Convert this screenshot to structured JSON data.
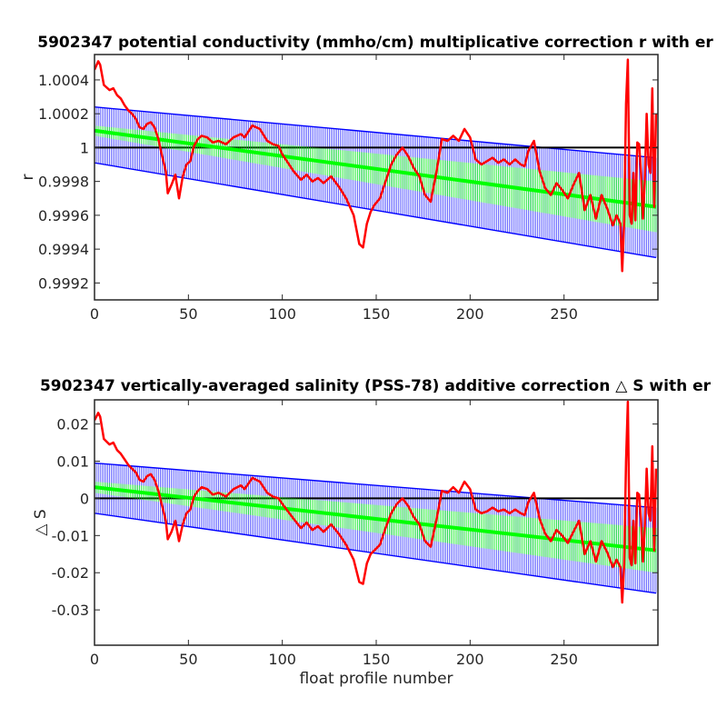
{
  "chart_data": [
    {
      "type": "line",
      "title": "5902347 potential conductivity (mmho/cm) multiplicative correction r with er",
      "xlabel": "",
      "ylabel": "r",
      "xlim": [
        0,
        300
      ],
      "ylim": [
        0.9991,
        1.00055
      ],
      "xticks": [
        0,
        50,
        100,
        150,
        200,
        250
      ],
      "xtick_labels": [
        "0",
        "50",
        "100",
        "150",
        "200",
        "250"
      ],
      "yticks": [
        0.9992,
        0.9994,
        0.9996,
        0.9998,
        1,
        1.0002,
        1.0004
      ],
      "ytick_labels": [
        "0.9992",
        "0.9994",
        "0.9996",
        "0.9998",
        "1",
        "1.0002",
        "1.0004"
      ],
      "grid": false,
      "reference_line": 1,
      "series": [
        {
          "role": "raw-fit",
          "color": "#ff0000",
          "x": [
            0,
            2,
            3,
            5,
            8,
            10,
            12,
            14,
            16,
            18,
            20,
            22,
            24,
            26,
            28,
            30,
            32,
            34,
            36,
            38,
            39,
            41,
            43,
            45,
            47,
            49,
            51,
            53,
            55,
            57,
            60,
            63,
            66,
            70,
            74,
            78,
            80,
            84,
            88,
            92,
            95,
            98,
            100,
            103,
            106,
            110,
            113,
            116,
            119,
            122,
            126,
            130,
            134,
            138,
            141,
            143,
            145,
            147,
            149,
            152,
            155,
            158,
            161,
            164,
            167,
            170,
            173,
            176,
            179,
            182,
            185,
            188,
            191,
            194,
            197,
            200,
            203,
            206,
            209,
            212,
            215,
            218,
            221,
            224,
            227,
            229,
            231,
            234,
            237,
            240,
            243,
            246,
            249,
            252,
            255,
            258,
            261,
            264,
            267,
            270,
            273,
            276,
            278,
            280,
            281,
            282,
            283,
            284,
            285,
            286,
            287,
            288,
            289,
            290,
            291,
            292,
            293,
            294,
            295,
            296,
            297,
            298,
            299
          ],
          "y": [
            1.00046,
            1.00051,
            1.00049,
            1.00037,
            1.00034,
            1.00035,
            1.00031,
            1.00029,
            1.00025,
            1.00022,
            1.0002,
            1.00017,
            1.00012,
            1.00011,
            1.00014,
            1.00015,
            1.00012,
            1.00005,
            0.99995,
            0.99986,
            0.99973,
            0.99978,
            0.99984,
            0.9997,
            0.99983,
            0.9999,
            0.99992,
            1.00001,
            1.00005,
            1.00007,
            1.00006,
            1.00003,
            1.00004,
            1.00002,
            1.00006,
            1.00008,
            1.00006,
            1.00013,
            1.00011,
            1.00004,
            1.00002,
            1.00001,
            0.99996,
            0.99991,
            0.99986,
            0.99981,
            0.99984,
            0.9998,
            0.99982,
            0.99979,
            0.99983,
            0.99977,
            0.9997,
            0.9996,
            0.99943,
            0.99941,
            0.99955,
            0.99962,
            0.99966,
            0.9997,
            0.9998,
            0.9999,
            0.99996,
            1.0,
            0.99995,
            0.99988,
            0.99983,
            0.99972,
            0.99968,
            0.99985,
            1.00005,
            1.00004,
            1.00007,
            1.00004,
            1.00011,
            1.00006,
            0.99993,
            0.9999,
            0.99992,
            0.99994,
            0.99991,
            0.99993,
            0.9999,
            0.99993,
            0.9999,
            0.99989,
            0.99998,
            1.00004,
            0.99986,
            0.99976,
            0.99972,
            0.99979,
            0.99975,
            0.9997,
            0.99978,
            0.99985,
            0.99963,
            0.99972,
            0.99958,
            0.99972,
            0.99964,
            0.99954,
            0.9996,
            0.99955,
            0.99927,
            0.99956,
            1.00026,
            1.00052,
            0.9996,
            0.99955,
            0.99985,
            0.99957,
            1.00003,
            1.00002,
            0.99985,
            0.99958,
            0.9998,
            1.0002,
            0.9999,
            0.99985,
            1.00035,
            0.99965,
            1.0002
          ]
        },
        {
          "role": "fit-with-error",
          "color": "#00ff00",
          "x_range": [
            0,
            300
          ],
          "y_start": 1.0001,
          "y_end": 0.99965,
          "err_start": 3e-05,
          "err_end": 0.00015
        },
        {
          "role": "error-envelope",
          "color": "#0000ff",
          "x_range": [
            0,
            300
          ],
          "upper_start": 1.00024,
          "upper_end": 0.99994,
          "lower_start": 0.99991,
          "lower_end": 0.99935
        }
      ]
    },
    {
      "type": "line",
      "title": "5902347 vertically-averaged salinity (PSS-78) additive correction △ S with er",
      "xlabel": "float profile number",
      "ylabel": "△ S",
      "xlim": [
        0,
        300
      ],
      "ylim": [
        -0.0395,
        0.0265
      ],
      "xticks": [
        0,
        50,
        100,
        150,
        200,
        250
      ],
      "xtick_labels": [
        "0",
        "50",
        "100",
        "150",
        "200",
        "250"
      ],
      "yticks": [
        -0.03,
        -0.02,
        -0.01,
        0,
        0.01,
        0.02
      ],
      "ytick_labels": [
        "-0.03",
        "-0.02",
        "-0.01",
        "0",
        "0.01",
        "0.02"
      ],
      "grid": false,
      "reference_line": 0,
      "series": [
        {
          "role": "raw-fit",
          "color": "#ff0000",
          "x": [
            0,
            2,
            3,
            5,
            8,
            10,
            12,
            14,
            16,
            18,
            20,
            22,
            24,
            26,
            28,
            30,
            32,
            34,
            36,
            38,
            39,
            41,
            43,
            45,
            47,
            49,
            51,
            53,
            55,
            57,
            60,
            63,
            66,
            70,
            74,
            78,
            80,
            84,
            88,
            92,
            95,
            98,
            100,
            103,
            106,
            110,
            113,
            116,
            119,
            122,
            126,
            130,
            134,
            138,
            141,
            143,
            145,
            147,
            149,
            152,
            155,
            158,
            161,
            164,
            167,
            170,
            173,
            176,
            179,
            182,
            185,
            188,
            191,
            194,
            197,
            200,
            203,
            206,
            209,
            212,
            215,
            218,
            221,
            224,
            227,
            229,
            231,
            234,
            237,
            240,
            243,
            246,
            249,
            252,
            255,
            258,
            261,
            264,
            267,
            270,
            273,
            276,
            278,
            280,
            281,
            282,
            283,
            284,
            285,
            286,
            287,
            288,
            289,
            290,
            291,
            292,
            293,
            294,
            295,
            296,
            297,
            298,
            299
          ],
          "y": [
            0.021,
            0.023,
            0.022,
            0.016,
            0.0145,
            0.015,
            0.013,
            0.012,
            0.0105,
            0.009,
            0.008,
            0.007,
            0.005,
            0.0045,
            0.006,
            0.0065,
            0.005,
            0.002,
            -0.002,
            -0.006,
            -0.011,
            -0.009,
            -0.006,
            -0.0115,
            -0.007,
            -0.004,
            -0.003,
            0.0005,
            0.002,
            0.003,
            0.0025,
            0.001,
            0.0015,
            0.0005,
            0.0025,
            0.0035,
            0.0025,
            0.0055,
            0.0045,
            0.0015,
            0.0005,
            0.0,
            -0.0015,
            -0.0035,
            -0.0055,
            -0.008,
            -0.0065,
            -0.0085,
            -0.0075,
            -0.009,
            -0.007,
            -0.0095,
            -0.0125,
            -0.0165,
            -0.0225,
            -0.023,
            -0.0175,
            -0.015,
            -0.014,
            -0.0125,
            -0.008,
            -0.004,
            -0.0015,
            0.0,
            -0.002,
            -0.005,
            -0.007,
            -0.0115,
            -0.013,
            -0.006,
            0.002,
            0.0015,
            0.003,
            0.0015,
            0.0045,
            0.0025,
            -0.003,
            -0.004,
            -0.0035,
            -0.0025,
            -0.0035,
            -0.003,
            -0.004,
            -0.003,
            -0.004,
            -0.0045,
            -0.001,
            0.0015,
            -0.0055,
            -0.0095,
            -0.0115,
            -0.0085,
            -0.01,
            -0.012,
            -0.009,
            -0.006,
            -0.015,
            -0.0115,
            -0.017,
            -0.0115,
            -0.0145,
            -0.0185,
            -0.0165,
            -0.0185,
            -0.028,
            -0.018,
            0.01,
            0.026,
            -0.016,
            -0.018,
            -0.006,
            -0.0175,
            0.0015,
            0.001,
            -0.006,
            -0.017,
            -0.008,
            0.008,
            -0.004,
            -0.006,
            0.014,
            -0.014,
            0.008
          ]
        },
        {
          "role": "fit-with-error",
          "color": "#00ff00",
          "x_range": [
            0,
            300
          ],
          "y_start": 0.003,
          "y_end": -0.014,
          "err_start": 0.0015,
          "err_end": 0.006
        },
        {
          "role": "error-envelope",
          "color": "#0000ff",
          "x_range": [
            0,
            300
          ],
          "upper_start": 0.0095,
          "upper_end": -0.0025,
          "lower_start": -0.004,
          "lower_end": -0.0255
        }
      ]
    }
  ]
}
